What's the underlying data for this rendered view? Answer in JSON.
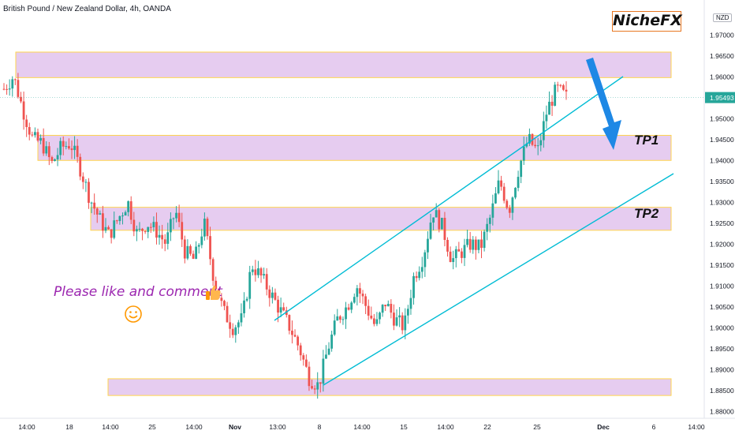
{
  "header": {
    "title": "British Pound / New Zealand Dollar, 4h, OANDA"
  },
  "branding": {
    "name": "NicheFX"
  },
  "currency_badge": "NZD",
  "annotation": {
    "text": "Please like and comment"
  },
  "chart_data": {
    "type": "candlestick",
    "symbol": "British Pound / New Zealand Dollar",
    "interval": "4h",
    "source": "OANDA",
    "y_range": [
      1.8775,
      1.9775
    ],
    "y_ticks": [
      "1.88000",
      "1.88500",
      "1.89000",
      "1.89500",
      "1.90000",
      "1.90500",
      "1.91000",
      "1.91500",
      "1.92000",
      "1.92500",
      "1.93000",
      "1.93500",
      "1.94000",
      "1.94500",
      "1.95000",
      "1.95500",
      "1.96000",
      "1.96500",
      "1.97000"
    ],
    "x_tick_labels": [
      "14:00",
      "18",
      "14:00",
      "25",
      "14:00",
      "Nov",
      "13:00",
      "8",
      "14:00",
      "15",
      "14:00",
      "22",
      "25",
      "Dec",
      "6",
      "14:00"
    ],
    "last_price": "1.95493",
    "bull_color": "#26a69a",
    "bear_color": "#ef5350",
    "zone_fill": "#e6ccf0",
    "zone_border": "#ffd54f",
    "channel_color": "#00bcd4",
    "arrow_color": "#1e88e5",
    "labels": {
      "tp1": "TP1",
      "tp2": "TP2"
    },
    "zones": [
      {
        "name": "resistance",
        "low": 1.9597,
        "high": 1.9658
      },
      {
        "name": "TP1",
        "low": 1.9399,
        "high": 1.9459
      },
      {
        "name": "TP2",
        "low": 1.9232,
        "high": 1.9287
      },
      {
        "name": "support",
        "low": 1.8837,
        "high": 1.8877
      }
    ],
    "close_path": [
      1.957,
      1.96,
      1.952,
      1.945,
      1.944,
      1.939,
      1.943,
      1.944,
      1.938,
      1.931,
      1.926,
      1.922,
      1.926,
      1.93,
      1.922,
      1.925,
      1.923,
      1.92,
      1.928,
      1.918,
      1.916,
      1.925,
      1.912,
      1.904,
      1.9,
      1.902,
      1.915,
      1.912,
      1.908,
      1.904,
      1.9,
      1.895,
      1.888,
      1.886,
      1.895,
      1.902,
      1.905,
      1.91,
      1.905,
      1.9,
      1.906,
      1.902,
      1.9,
      1.912,
      1.917,
      1.928,
      1.924,
      1.916,
      1.918,
      1.92,
      1.919,
      1.926,
      1.935,
      1.928,
      1.938,
      1.945,
      1.942,
      1.952,
      1.957,
      1.955
    ]
  }
}
